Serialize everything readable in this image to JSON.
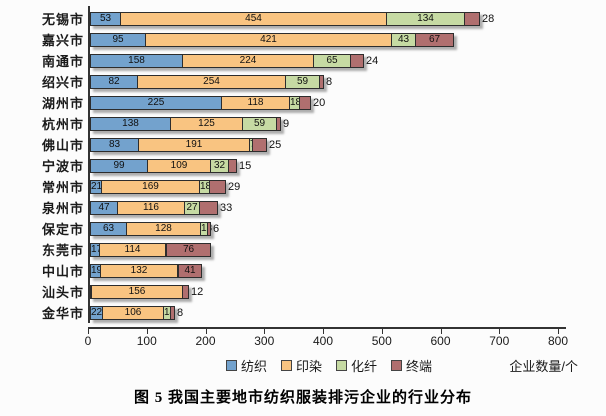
{
  "figure": {
    "caption": "图 5  我国主要地市纺织服装排污企业的行业分布"
  },
  "chart_data": {
    "type": "bar",
    "variant": "horizontal-stacked",
    "title": "图 5  我国主要地市纺织服装排污企业的行业分布",
    "xlabel": "企业数量/个",
    "xlim": [
      0,
      800
    ],
    "xticks": [
      0,
      100,
      200,
      300,
      400,
      500,
      600,
      700,
      800
    ],
    "grid": false,
    "legend_position": "bottom",
    "categories": [
      "无锡市",
      "嘉兴市",
      "南通市",
      "绍兴市",
      "湖州市",
      "杭州市",
      "佛山市",
      "宁波市",
      "常州市",
      "泉州市",
      "保定市",
      "东莞市",
      "中山市",
      "汕头市",
      "金华市"
    ],
    "series": [
      {
        "name": "纺织",
        "color": "#73A2CD",
        "values": [
          53,
          95,
          158,
          82,
          225,
          138,
          83,
          99,
          21,
          47,
          63,
          17,
          19,
          4,
          22
        ]
      },
      {
        "name": "印染",
        "color": "#F9C481",
        "values": [
          454,
          421,
          224,
          254,
          118,
          125,
          191,
          109,
          169,
          116,
          128,
          114,
          132,
          156,
          106
        ]
      },
      {
        "name": "化纤",
        "color": "#C6DAA3",
        "values": [
          134,
          43,
          65,
          59,
          18,
          59,
          7,
          32,
          18,
          27,
          13,
          2,
          3,
          0,
          14
        ]
      },
      {
        "name": "终端",
        "color": "#B06F6F",
        "values": [
          28,
          67,
          24,
          8,
          20,
          9,
          25,
          15,
          29,
          33,
          6,
          76,
          41,
          12,
          8
        ]
      }
    ]
  }
}
